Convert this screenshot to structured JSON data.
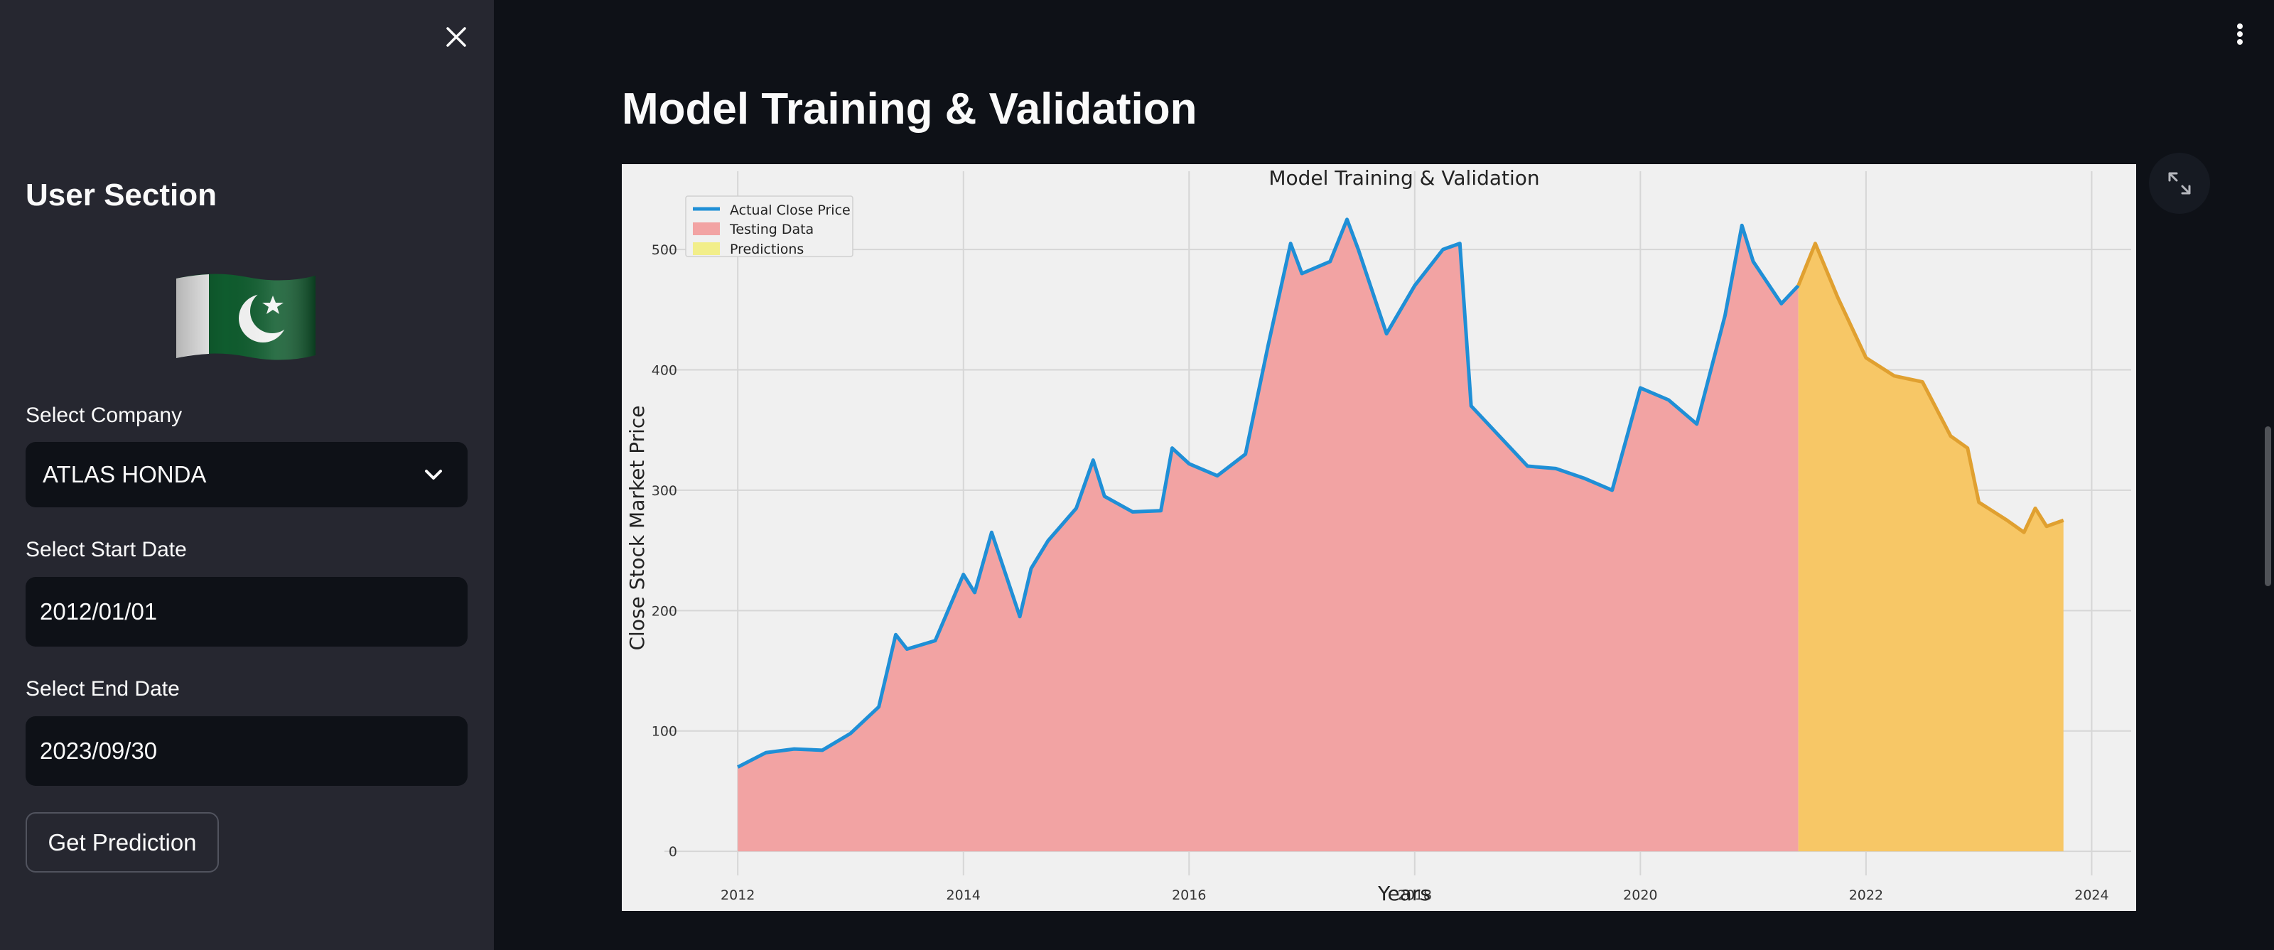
{
  "sidebar": {
    "title": "User Section",
    "company_label": "Select Company",
    "company_value": "ATLAS HONDA",
    "start_date_label": "Select Start Date",
    "start_date_value": "2012/01/01",
    "end_date_label": "Select End Date",
    "end_date_value": "2023/09/30",
    "button_label": "Get Prediction"
  },
  "main": {
    "heading": "Model Training & Validation"
  },
  "colors": {
    "actual": "#1f8fd6",
    "testing": "#f2a3a3",
    "predictions": "#f7c766",
    "prediction_line": "#e0a030"
  },
  "chart_data": {
    "type": "area",
    "title": "Model Training & Validation",
    "xlabel": "Years",
    "ylabel": "Close Stock Market Price",
    "xlim": [
      2011.35,
      2024.35
    ],
    "ylim": [
      -20,
      565
    ],
    "xticks": [
      2012,
      2014,
      2016,
      2018,
      2020,
      2022,
      2024
    ],
    "yticks": [
      0,
      100,
      200,
      300,
      400,
      500
    ],
    "grid": true,
    "legend_position": "top-left",
    "legend": [
      "Actual Close Price",
      "Testing Data",
      "Predictions"
    ],
    "series": [
      {
        "name": "Actual Close Price",
        "x": [
          2012.0,
          2012.25,
          2012.5,
          2012.75,
          2013.0,
          2013.25,
          2013.4,
          2013.5,
          2013.75,
          2014.0,
          2014.1,
          2014.25,
          2014.5,
          2014.6,
          2014.75,
          2015.0,
          2015.15,
          2015.25,
          2015.5,
          2015.75,
          2015.85,
          2016.0,
          2016.25,
          2016.5,
          2016.7,
          2016.9,
          2017.0,
          2017.25,
          2017.4,
          2017.5,
          2017.75,
          2018.0,
          2018.25,
          2018.4,
          2018.5,
          2018.75,
          2019.0,
          2019.25,
          2019.5,
          2019.75,
          2020.0,
          2020.25,
          2020.5,
          2020.75,
          2020.9,
          2021.0,
          2021.25,
          2021.4
        ],
        "values": [
          70,
          82,
          85,
          84,
          98,
          120,
          180,
          168,
          175,
          230,
          215,
          265,
          195,
          235,
          258,
          285,
          325,
          295,
          282,
          283,
          335,
          322,
          312,
          330,
          420,
          505,
          480,
          490,
          525,
          500,
          430,
          470,
          500,
          505,
          370,
          345,
          320,
          318,
          310,
          300,
          385,
          375,
          355,
          445,
          520,
          490,
          455,
          470
        ]
      },
      {
        "name": "Predictions",
        "x": [
          2021.4,
          2021.55,
          2021.75,
          2022.0,
          2022.25,
          2022.5,
          2022.75,
          2022.9,
          2023.0,
          2023.25,
          2023.4,
          2023.5,
          2023.6,
          2023.75
        ],
        "values": [
          470,
          505,
          460,
          410,
          395,
          390,
          345,
          335,
          290,
          275,
          265,
          285,
          270,
          275
        ]
      }
    ]
  }
}
